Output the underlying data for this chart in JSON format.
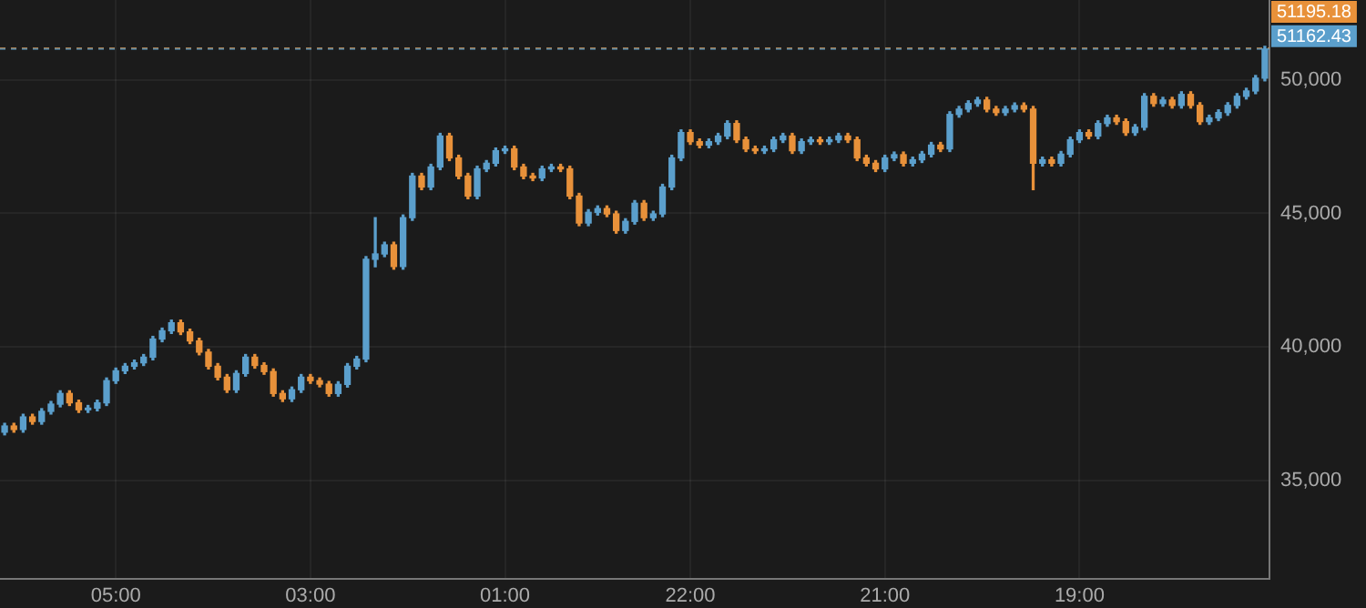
{
  "chart_data": {
    "type": "candlestick",
    "categories": [
      null,
      null,
      null,
      null,
      null,
      null,
      null,
      null,
      null,
      null,
      null,
      null,
      "05:00",
      null,
      null,
      null,
      null,
      null,
      null,
      null,
      null,
      null,
      null,
      null,
      null,
      null,
      null,
      null,
      null,
      null,
      null,
      null,
      null,
      "03:00",
      null,
      null,
      null,
      null,
      null,
      null,
      null,
      null,
      null,
      null,
      null,
      null,
      null,
      null,
      null,
      null,
      null,
      null,
      null,
      null,
      "01:00",
      null,
      null,
      null,
      null,
      null,
      null,
      null,
      null,
      null,
      null,
      null,
      null,
      null,
      null,
      null,
      null,
      null,
      null,
      null,
      "22:00",
      null,
      null,
      null,
      null,
      null,
      null,
      null,
      null,
      null,
      null,
      null,
      null,
      null,
      null,
      null,
      null,
      null,
      null,
      null,
      null,
      "21:00",
      null,
      null,
      null,
      null,
      null,
      null,
      null,
      null,
      null,
      null,
      null,
      null,
      null,
      null,
      null,
      null,
      null,
      null,
      null,
      null,
      "19:00",
      null,
      null,
      null,
      null,
      null,
      null,
      null,
      null,
      null,
      null,
      null,
      null,
      null,
      null,
      null,
      null,
      null,
      null,
      null,
      null
    ],
    "ohlc": [
      [
        36800,
        37130,
        36700,
        37030
      ],
      [
        37030,
        37130,
        36800,
        36900
      ],
      [
        36900,
        37470,
        36800,
        37370
      ],
      [
        37370,
        37470,
        37100,
        37200
      ],
      [
        37200,
        37680,
        37100,
        37580
      ],
      [
        37580,
        37950,
        37480,
        37850
      ],
      [
        37850,
        38350,
        37750,
        38250
      ],
      [
        38250,
        38350,
        37800,
        37900
      ],
      [
        37900,
        38000,
        37540,
        37640
      ],
      [
        37640,
        37800,
        37540,
        37700
      ],
      [
        37700,
        38000,
        37600,
        37900
      ],
      [
        37900,
        38830,
        37800,
        38730
      ],
      [
        38730,
        39200,
        38630,
        39100
      ],
      [
        39100,
        39370,
        39000,
        39270
      ],
      [
        39270,
        39500,
        39170,
        39400
      ],
      [
        39400,
        39710,
        39300,
        39610
      ],
      [
        39610,
        40390,
        39510,
        40290
      ],
      [
        40290,
        40700,
        40190,
        40600
      ],
      [
        40600,
        41000,
        40500,
        40900
      ],
      [
        40900,
        41000,
        40460,
        40560
      ],
      [
        40560,
        40660,
        40120,
        40220
      ],
      [
        40220,
        40320,
        39700,
        39800
      ],
      [
        39800,
        39900,
        39170,
        39270
      ],
      [
        39270,
        39370,
        38760,
        38860
      ],
      [
        38860,
        38960,
        38290,
        38390
      ],
      [
        38390,
        39100,
        38290,
        39000
      ],
      [
        39000,
        39710,
        38900,
        39610
      ],
      [
        39610,
        39710,
        39200,
        39300
      ],
      [
        39300,
        39400,
        38970,
        39070
      ],
      [
        39070,
        39170,
        38150,
        38250
      ],
      [
        38250,
        38350,
        37950,
        38050
      ],
      [
        38050,
        38490,
        37950,
        38390
      ],
      [
        38390,
        38960,
        38290,
        38860
      ],
      [
        38860,
        38960,
        38630,
        38730
      ],
      [
        38730,
        38830,
        38500,
        38600
      ],
      [
        38600,
        38700,
        38150,
        38250
      ],
      [
        38250,
        38690,
        38150,
        38590
      ],
      [
        38590,
        39370,
        38490,
        39270
      ],
      [
        39270,
        39640,
        39170,
        39540
      ],
      [
        39540,
        43380,
        39440,
        43280
      ],
      [
        43280,
        44840,
        43000,
        43480
      ],
      [
        43480,
        43920,
        43380,
        43820
      ],
      [
        43820,
        43920,
        42910,
        43010
      ],
      [
        43010,
        44940,
        42910,
        44840
      ],
      [
        44840,
        46500,
        44740,
        46400
      ],
      [
        46400,
        46500,
        45890,
        45990
      ],
      [
        45990,
        46840,
        45890,
        46740
      ],
      [
        46740,
        48000,
        46640,
        47900
      ],
      [
        47900,
        48000,
        46980,
        47080
      ],
      [
        47080,
        47180,
        46300,
        46400
      ],
      [
        46400,
        46500,
        45550,
        45650
      ],
      [
        45650,
        46770,
        45550,
        46670
      ],
      [
        46670,
        46980,
        46570,
        46880
      ],
      [
        46880,
        47450,
        46780,
        47350
      ],
      [
        47350,
        47520,
        47250,
        47420
      ],
      [
        47420,
        47520,
        46640,
        46740
      ],
      [
        46740,
        46840,
        46300,
        46400
      ],
      [
        46400,
        46500,
        46230,
        46330
      ],
      [
        46330,
        46770,
        46230,
        46670
      ],
      [
        46670,
        46840,
        46570,
        46740
      ],
      [
        46740,
        46840,
        46570,
        46670
      ],
      [
        46670,
        46770,
        45550,
        45650
      ],
      [
        45650,
        45750,
        44540,
        44640
      ],
      [
        44640,
        45140,
        44540,
        45040
      ],
      [
        45040,
        45280,
        44940,
        45180
      ],
      [
        45180,
        45280,
        44880,
        44980
      ],
      [
        44980,
        45080,
        44260,
        44360
      ],
      [
        44360,
        44800,
        44260,
        44700
      ],
      [
        44700,
        45480,
        44600,
        45380
      ],
      [
        45380,
        45480,
        44740,
        44840
      ],
      [
        44840,
        45080,
        44740,
        44980
      ],
      [
        44980,
        46090,
        44880,
        45990
      ],
      [
        45990,
        47180,
        45890,
        47080
      ],
      [
        47080,
        48130,
        46980,
        48030
      ],
      [
        48030,
        48130,
        47590,
        47690
      ],
      [
        47690,
        47790,
        47460,
        47560
      ],
      [
        47560,
        47790,
        47460,
        47690
      ],
      [
        47690,
        48000,
        47590,
        47900
      ],
      [
        47900,
        48470,
        47800,
        48370
      ],
      [
        48370,
        48470,
        47660,
        47760
      ],
      [
        47760,
        47860,
        47320,
        47420
      ],
      [
        47420,
        47520,
        47250,
        47350
      ],
      [
        47350,
        47520,
        47250,
        47420
      ],
      [
        47420,
        47860,
        47320,
        47760
      ],
      [
        47760,
        48000,
        47660,
        47900
      ],
      [
        47900,
        48000,
        47250,
        47350
      ],
      [
        47350,
        47790,
        47250,
        47690
      ],
      [
        47690,
        47860,
        47590,
        47760
      ],
      [
        47760,
        47860,
        47590,
        47690
      ],
      [
        47690,
        47860,
        47590,
        47760
      ],
      [
        47760,
        48000,
        47660,
        47900
      ],
      [
        47900,
        48000,
        47660,
        47760
      ],
      [
        47760,
        47860,
        46980,
        47080
      ],
      [
        47080,
        47180,
        46780,
        46880
      ],
      [
        46880,
        46980,
        46570,
        46670
      ],
      [
        46670,
        47180,
        46570,
        47080
      ],
      [
        47080,
        47300,
        46980,
        47200
      ],
      [
        47200,
        47300,
        46780,
        46880
      ],
      [
        46880,
        47110,
        46780,
        47010
      ],
      [
        47010,
        47320,
        46910,
        47220
      ],
      [
        47220,
        47660,
        47120,
        47560
      ],
      [
        47560,
        47660,
        47320,
        47420
      ],
      [
        47420,
        48810,
        47320,
        48710
      ],
      [
        48710,
        49010,
        48610,
        48910
      ],
      [
        48910,
        49220,
        48810,
        49120
      ],
      [
        49120,
        49350,
        49020,
        49250
      ],
      [
        49250,
        49350,
        48810,
        48910
      ],
      [
        48910,
        49010,
        48680,
        48780
      ],
      [
        48780,
        49010,
        48680,
        48910
      ],
      [
        48910,
        49140,
        48810,
        49040
      ],
      [
        49040,
        49140,
        48810,
        48910
      ],
      [
        48910,
        49010,
        45890,
        46880
      ],
      [
        46880,
        47110,
        46780,
        47010
      ],
      [
        47010,
        47110,
        46780,
        46880
      ],
      [
        46880,
        47320,
        46780,
        47220
      ],
      [
        47220,
        47860,
        47120,
        47760
      ],
      [
        47760,
        48130,
        47660,
        48030
      ],
      [
        48030,
        48130,
        47800,
        47900
      ],
      [
        47900,
        48470,
        47800,
        48370
      ],
      [
        48370,
        48680,
        48270,
        48580
      ],
      [
        48580,
        48680,
        48340,
        48440
      ],
      [
        48440,
        48540,
        47930,
        48030
      ],
      [
        48030,
        48330,
        47930,
        48230
      ],
      [
        48230,
        49490,
        48130,
        49390
      ],
      [
        49390,
        49490,
        49020,
        49120
      ],
      [
        49120,
        49350,
        49020,
        49250
      ],
      [
        49250,
        49350,
        48950,
        49050
      ],
      [
        49050,
        49560,
        48950,
        49460
      ],
      [
        49460,
        49560,
        48950,
        49050
      ],
      [
        49050,
        49150,
        48340,
        48440
      ],
      [
        48440,
        48680,
        48340,
        48580
      ],
      [
        48580,
        48880,
        48480,
        48780
      ],
      [
        48780,
        49150,
        48680,
        49050
      ],
      [
        49050,
        49490,
        48950,
        49390
      ],
      [
        49390,
        49690,
        49290,
        49590
      ],
      [
        49590,
        50170,
        49490,
        50070
      ],
      [
        50070,
        51262.43,
        49970,
        51162.43
      ]
    ],
    "colors": [
      "#5b9fcc",
      "#e8913a",
      "#5b9fcc",
      "#e8913a",
      "#5b9fcc",
      "#5b9fcc",
      "#5b9fcc",
      "#e8913a",
      "#e8913a",
      "#5b9fcc",
      "#5b9fcc",
      "#5b9fcc",
      "#5b9fcc",
      "#5b9fcc",
      "#5b9fcc",
      "#5b9fcc",
      "#5b9fcc",
      "#5b9fcc",
      "#5b9fcc",
      "#e8913a",
      "#e8913a",
      "#e8913a",
      "#e8913a",
      "#e8913a",
      "#e8913a",
      "#5b9fcc",
      "#5b9fcc",
      "#e8913a",
      "#e8913a",
      "#e8913a",
      "#e8913a",
      "#5b9fcc",
      "#5b9fcc",
      "#e8913a",
      "#e8913a",
      "#e8913a",
      "#5b9fcc",
      "#5b9fcc",
      "#5b9fcc",
      "#5b9fcc",
      "#5b9fcc",
      "#5b9fcc",
      "#e8913a",
      "#5b9fcc",
      "#5b9fcc",
      "#e8913a",
      "#5b9fcc",
      "#5b9fcc",
      "#e8913a",
      "#e8913a",
      "#e8913a",
      "#5b9fcc",
      "#5b9fcc",
      "#5b9fcc",
      "#5b9fcc",
      "#e8913a",
      "#e8913a",
      "#e8913a",
      "#5b9fcc",
      "#5b9fcc",
      "#e8913a",
      "#e8913a",
      "#e8913a",
      "#5b9fcc",
      "#5b9fcc",
      "#e8913a",
      "#e8913a",
      "#5b9fcc",
      "#5b9fcc",
      "#e8913a",
      "#5b9fcc",
      "#5b9fcc",
      "#5b9fcc",
      "#5b9fcc",
      "#e8913a",
      "#e8913a",
      "#5b9fcc",
      "#5b9fcc",
      "#5b9fcc",
      "#e8913a",
      "#e8913a",
      "#e8913a",
      "#5b9fcc",
      "#5b9fcc",
      "#5b9fcc",
      "#e8913a",
      "#5b9fcc",
      "#5b9fcc",
      "#e8913a",
      "#5b9fcc",
      "#5b9fcc",
      "#e8913a",
      "#e8913a",
      "#e8913a",
      "#e8913a",
      "#5b9fcc",
      "#5b9fcc",
      "#e8913a",
      "#5b9fcc",
      "#5b9fcc",
      "#5b9fcc",
      "#e8913a",
      "#5b9fcc",
      "#5b9fcc",
      "#5b9fcc",
      "#5b9fcc",
      "#e8913a",
      "#e8913a",
      "#5b9fcc",
      "#5b9fcc",
      "#e8913a",
      "#e8913a",
      "#5b9fcc",
      "#e8913a",
      "#5b9fcc",
      "#5b9fcc",
      "#5b9fcc",
      "#e8913a",
      "#5b9fcc",
      "#5b9fcc",
      "#e8913a",
      "#e8913a",
      "#5b9fcc",
      "#5b9fcc",
      "#e8913a",
      "#5b9fcc",
      "#e8913a",
      "#5b9fcc",
      "#e8913a",
      "#e8913a",
      "#5b9fcc",
      "#5b9fcc",
      "#5b9fcc",
      "#5b9fcc",
      "#5b9fcc",
      "#5b9fcc",
      "#5b9fcc"
    ],
    "ylim": [
      31300,
      53000
    ],
    "yticks": [
      {
        "value": 35000,
        "label": "35,000"
      },
      {
        "value": 40000,
        "label": "40,000"
      },
      {
        "value": 45000,
        "label": "45,000"
      },
      {
        "value": 50000,
        "label": "50,000"
      }
    ],
    "grid": true,
    "ref_lines": [
      {
        "axis": "y",
        "value": 51195.18,
        "label": "51195.18",
        "color": "#e8913a",
        "line_style": "dashed"
      },
      {
        "axis": "y",
        "value": 51162.43,
        "label": "51162.43",
        "color": "#5b9fcc",
        "line_style": "dashed"
      }
    ]
  }
}
